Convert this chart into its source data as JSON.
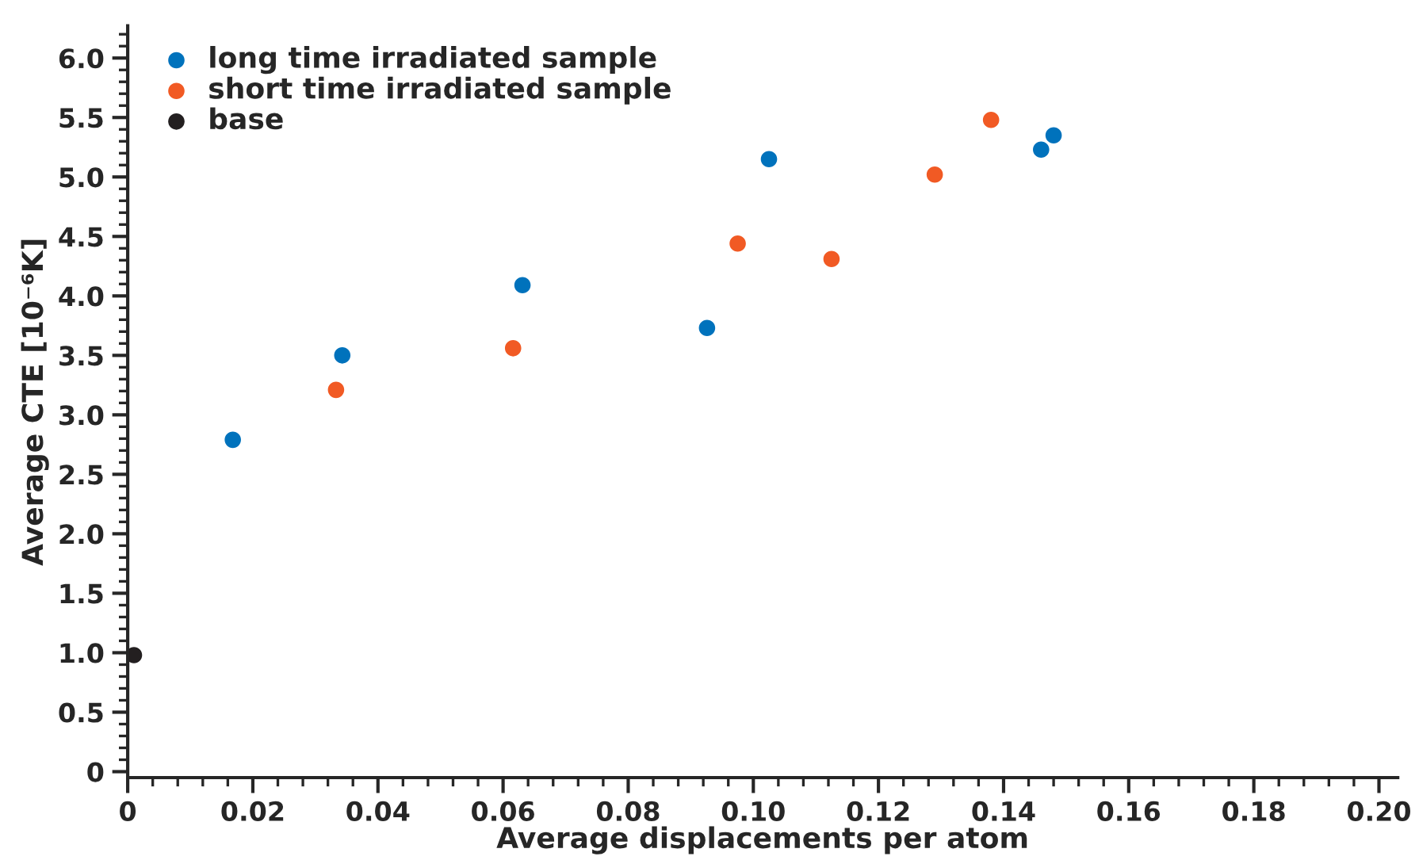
{
  "chart_data": {
    "type": "scatter",
    "xlabel": "Average displacements per atom",
    "ylabel": "Average CTE [10⁻⁶K]",
    "series": [
      {
        "name": "long time irradiated sample",
        "color": "#0072bc",
        "x": [
          0.0168,
          0.0343,
          0.0631,
          0.0926,
          0.1025,
          0.146,
          0.148
        ],
        "values": [
          2.79,
          3.5,
          4.09,
          3.73,
          5.15,
          5.23,
          5.35
        ]
      },
      {
        "name": "short time irradiated sample",
        "color": "#f15a24",
        "x": [
          0.0333,
          0.0616,
          0.0975,
          0.1125,
          0.129,
          0.138
        ],
        "values": [
          3.21,
          3.56,
          4.44,
          4.31,
          5.02,
          5.48
        ]
      },
      {
        "name": "base",
        "color": "#231f20",
        "x": [
          0.001
        ],
        "values": [
          0.98
        ]
      }
    ],
    "xlim": [
      0,
      0.203
    ],
    "ylim": [
      -0.05,
      6.27
    ],
    "xticks": [
      {
        "value": 0,
        "label": "0"
      },
      {
        "value": 0.02,
        "label": "0.02"
      },
      {
        "value": 0.04,
        "label": "0.04"
      },
      {
        "value": 0.06,
        "label": "0.06"
      },
      {
        "value": 0.08,
        "label": "0.08"
      },
      {
        "value": 0.1,
        "label": "0.10"
      },
      {
        "value": 0.12,
        "label": "0.12"
      },
      {
        "value": 0.14,
        "label": "0.14"
      },
      {
        "value": 0.16,
        "label": "0.16"
      },
      {
        "value": 0.18,
        "label": "0.18"
      },
      {
        "value": 0.2,
        "label": "0.20"
      }
    ],
    "yticks": [
      {
        "value": 0,
        "label": "0"
      },
      {
        "value": 0.5,
        "label": "0.5"
      },
      {
        "value": 1,
        "label": "1.0"
      },
      {
        "value": 1.5,
        "label": "1.5"
      },
      {
        "value": 2,
        "label": "2.0"
      },
      {
        "value": 2.5,
        "label": "2.5"
      },
      {
        "value": 3,
        "label": "3.0"
      },
      {
        "value": 3.5,
        "label": "3.5"
      },
      {
        "value": 4,
        "label": "4.0"
      },
      {
        "value": 4.5,
        "label": "4.5"
      },
      {
        "value": 5,
        "label": "5.0"
      },
      {
        "value": 5.5,
        "label": "5.5"
      },
      {
        "value": 6,
        "label": "6.0"
      }
    ],
    "marker": "circle",
    "legend": "top left",
    "grid": false
  }
}
